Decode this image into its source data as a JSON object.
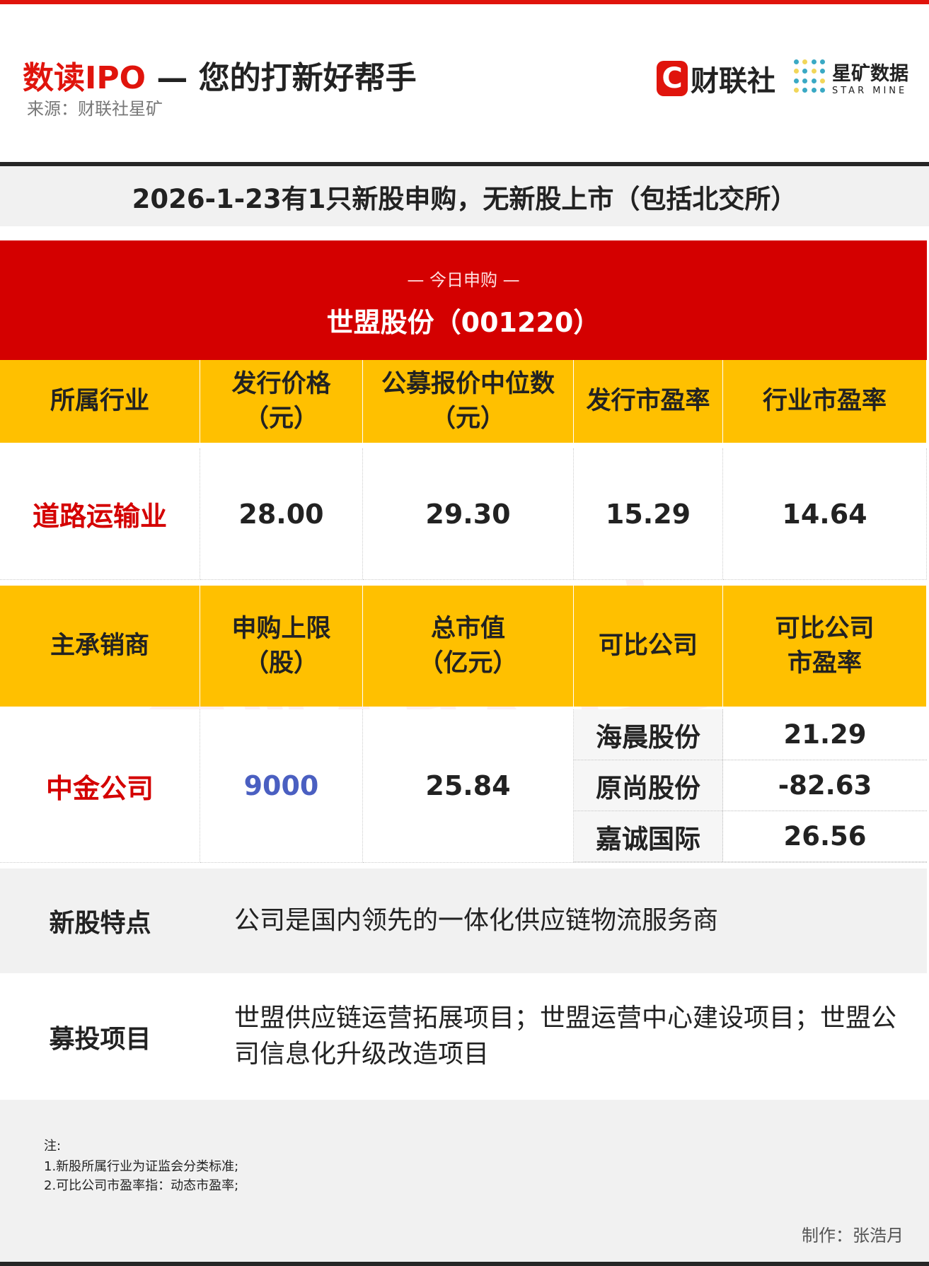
{
  "header": {
    "title_red": "数读IPO",
    "title_rest": " — 您的打新好帮手",
    "source": "来源：财联社星矿",
    "logo1_letter": "C",
    "logo1_text": "财联社",
    "logo2_cn": "星矿数据",
    "logo2_en": "STAR MINE"
  },
  "banner": "2026-1-23有1只新股申购，无新股上市（包括北交所）",
  "today": {
    "label": "— 今日申购 —",
    "stock": "世盟股份（001220）"
  },
  "table1": {
    "headers": [
      "所属行业",
      "发行价格\n（元）",
      "公募报价中位数\n（元）",
      "发行市盈率",
      "行业市盈率"
    ],
    "values": [
      "道路运输业",
      "28.00",
      "29.30",
      "15.29",
      "14.64"
    ]
  },
  "table2": {
    "headers": [
      "主承销商",
      "申购上限\n（股）",
      "总市值\n（亿元）",
      "可比公司",
      "可比公司\n市盈率"
    ],
    "underwriter": "中金公司",
    "limit": "9000",
    "market_cap": "25.84",
    "comparables": [
      {
        "name": "海晨股份",
        "pe": "21.29"
      },
      {
        "name": "原尚股份",
        "pe": "-82.63"
      },
      {
        "name": "嘉诚国际",
        "pe": "26.56"
      }
    ]
  },
  "features": {
    "label": "新股特点",
    "text": "公司是国内领先的一体化供应链物流服务商"
  },
  "projects": {
    "label": "募投项目",
    "text": "世盟供应链运营拓展项目；世盟运营中心建设项目；世盟公司信息化升级改造项目"
  },
  "notes": {
    "title": "注:",
    "items": [
      "1.新股所属行业为证监会分类标准;",
      "2.可比公司市盈率指：动态市盈率;"
    ],
    "maker": "制作：张浩月"
  },
  "watermark": "C财联社",
  "colors": {
    "red": "#d40000",
    "yellow": "#ffc000",
    "blue": "#4a5fc1"
  }
}
